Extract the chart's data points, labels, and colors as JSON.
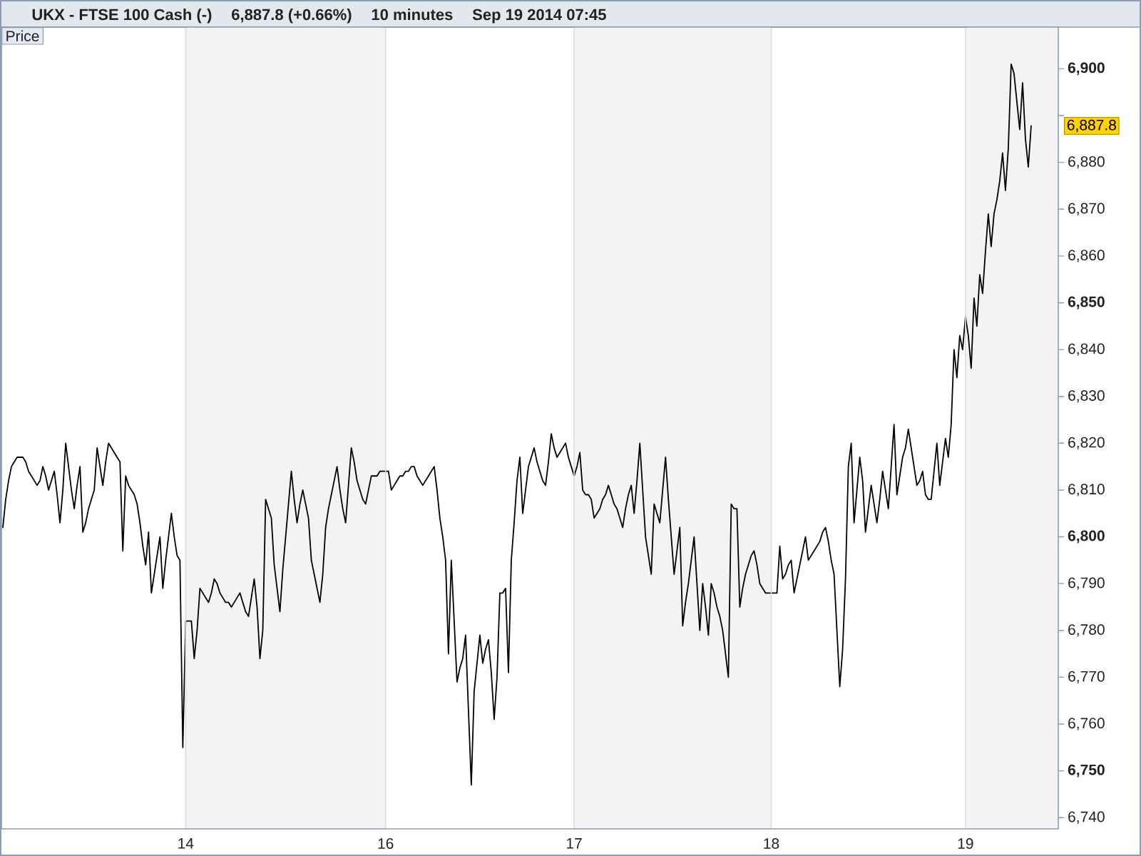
{
  "chart_data": {
    "type": "line",
    "title": "UKX - FTSE 100 Cash (-)",
    "subtitle": "6,887.8 (+0.66%)",
    "annotations": [
      "10 minutes",
      "Sep 19 2014 07:45",
      "Price",
      "6,887.8"
    ],
    "color": "#000000",
    "categories": [
      null,
      null,
      null,
      null,
      null,
      null,
      null,
      null,
      null,
      null,
      null,
      null,
      null,
      null,
      null,
      null,
      null,
      null,
      null,
      null,
      null,
      null,
      null,
      null,
      null,
      null,
      null,
      null,
      null,
      null,
      null,
      null,
      null,
      null,
      null,
      null,
      null,
      null,
      null,
      null,
      null,
      null,
      null,
      null,
      null,
      null,
      null,
      null,
      null,
      null,
      null,
      null,
      null,
      null,
      null,
      null,
      null,
      null,
      null,
      null,
      null,
      null,
      null,
      null,
      "14",
      null,
      null,
      null,
      null,
      null,
      null,
      null,
      null,
      null,
      null,
      null,
      null,
      null,
      null,
      null,
      null,
      null,
      null,
      null,
      null,
      null,
      null,
      null,
      null,
      null,
      null,
      null,
      null,
      null,
      null,
      null,
      null,
      null,
      null,
      null,
      null,
      null,
      null,
      null,
      null,
      null,
      null,
      null,
      null,
      null,
      null,
      null,
      null,
      null,
      null,
      null,
      null,
      null,
      null,
      null,
      null,
      null,
      null,
      null,
      null,
      null,
      null,
      null,
      null,
      null,
      null,
      null,
      null,
      null,
      "16",
      null,
      null,
      null,
      null,
      null,
      null,
      null,
      null,
      null,
      null,
      null,
      null,
      null,
      null,
      null,
      null,
      null,
      null,
      null,
      null,
      null,
      null,
      null,
      null,
      null,
      null,
      null,
      null,
      null,
      null,
      null,
      null,
      null,
      null,
      null,
      null,
      null,
      null,
      null,
      null,
      null,
      null,
      null,
      null,
      null,
      null,
      null,
      null,
      null,
      null,
      null,
      null,
      null,
      null,
      null,
      null,
      null,
      null,
      null,
      null,
      null,
      null,
      null,
      null,
      null,
      "17",
      null,
      null,
      null,
      null,
      null,
      null,
      null,
      null,
      null,
      null,
      null,
      null,
      null,
      null,
      null,
      null,
      null,
      null,
      null,
      null,
      null,
      null,
      null,
      null,
      null,
      null,
      null,
      null,
      null,
      null,
      null,
      null,
      null,
      null,
      null,
      null,
      null,
      null,
      null,
      null,
      null,
      null,
      null,
      null,
      null,
      null,
      null,
      null,
      null,
      null,
      null,
      null,
      null,
      null,
      null,
      null,
      null,
      null,
      null,
      null,
      null,
      null,
      null,
      null,
      null,
      null,
      null,
      null,
      "18",
      null,
      null,
      null,
      null,
      null,
      null,
      null,
      null,
      null,
      null,
      null,
      null,
      null,
      null,
      null,
      null,
      null,
      null,
      null,
      null,
      null,
      null,
      null,
      null,
      null,
      null,
      null,
      null,
      null,
      null,
      null,
      null,
      null,
      null,
      null,
      null,
      null,
      null,
      null,
      null,
      null,
      null,
      null,
      null,
      null,
      null,
      null,
      null,
      null,
      null,
      null,
      null,
      null,
      null,
      null,
      null,
      null,
      null,
      null,
      null,
      null,
      null,
      null,
      null,
      null,
      null,
      null,
      "19",
      null,
      null,
      null,
      null,
      null,
      null,
      null,
      null,
      null,
      null,
      null,
      null,
      null,
      null,
      null,
      null,
      null,
      null,
      null,
      null,
      null,
      null,
      null,
      null,
      null,
      null,
      null,
      null,
      null,
      null,
      null,
      null
    ],
    "values": [
      6802,
      6808,
      6812,
      6815,
      6816,
      6817,
      6817,
      6817,
      6816,
      6814,
      6813,
      6812,
      6811,
      6812,
      6815,
      6813,
      6810,
      6812,
      6814,
      6809,
      6803,
      6810,
      6820,
      6815,
      6810,
      6806,
      6811,
      6815,
      6801,
      6803,
      6806,
      6808,
      6810,
      6819,
      6815,
      6811,
      6816,
      6820,
      6819,
      6818,
      6817,
      6816,
      6797,
      6813,
      6811,
      6810,
      6809,
      6807,
      6803,
      6798,
      6794,
      6801,
      6788,
      6792,
      6796,
      6800,
      6789,
      6795,
      6800,
      6805,
      6800,
      6796,
      6795,
      6755,
      6782,
      6782,
      6782,
      6774,
      6780,
      6789,
      6788,
      6787,
      6786,
      6788,
      6791,
      6790,
      6788,
      6787,
      6786,
      6786,
      6785,
      6786,
      6787,
      6788,
      6786,
      6784,
      6783,
      6787,
      6791,
      6785,
      6774,
      6780,
      6808,
      6806,
      6804,
      6794,
      6789,
      6784,
      6793,
      6800,
      6807,
      6814,
      6808,
      6803,
      6807,
      6810,
      6807,
      6804,
      6795,
      6792,
      6789,
      6786,
      6792,
      6802,
      6806,
      6809,
      6812,
      6815,
      6810,
      6806,
      6803,
      6811,
      6819,
      6816,
      6812,
      6810,
      6808,
      6807,
      6810,
      6813,
      6813,
      6813,
      6814,
      6814,
      6814,
      6814,
      6810,
      6811,
      6812,
      6813,
      6813,
      6814,
      6814,
      6815,
      6815,
      6813,
      6812,
      6811,
      6812,
      6813,
      6814,
      6815,
      6810,
      6804,
      6800,
      6795,
      6775,
      6795,
      6782,
      6769,
      6772,
      6774,
      6779,
      6763,
      6747,
      6767,
      6773,
      6779,
      6773,
      6776,
      6778,
      6771,
      6761,
      6770,
      6788,
      6788,
      6789,
      6771,
      6795,
      6803,
      6812,
      6817,
      6805,
      6810,
      6815,
      6817,
      6819,
      6816,
      6814,
      6812,
      6811,
      6816,
      6822,
      6819,
      6817,
      6818,
      6819,
      6820,
      6817,
      6815,
      6813,
      6815,
      6818,
      6810,
      6809,
      6809,
      6808,
      6804,
      6805,
      6806,
      6808,
      6809,
      6811,
      6809,
      6807,
      6806,
      6804,
      6802,
      6806,
      6809,
      6811,
      6805,
      6812,
      6820,
      6810,
      6800,
      6796,
      6792,
      6807,
      6805,
      6803,
      6810,
      6817,
      6808,
      6800,
      6792,
      6797,
      6802,
      6781,
      6786,
      6790,
      6795,
      6800,
      6790,
      6780,
      6790,
      6785,
      6779,
      6790,
      6788,
      6785,
      6783,
      6780,
      6775,
      6770,
      6807,
      6806,
      6806,
      6785,
      6789,
      6792,
      6794,
      6796,
      6797,
      6794,
      6790,
      6789,
      6788,
      6788,
      6788,
      6788,
      6788,
      6798,
      6791,
      6792,
      6794,
      6795,
      6788,
      6791,
      6794,
      6797,
      6800,
      6795,
      6796,
      6797,
      6798,
      6799,
      6801,
      6802,
      6799,
      6795,
      6792,
      6780,
      6768,
      6776,
      6791,
      6815,
      6820,
      6803,
      6810,
      6817,
      6812,
      6801,
      6806,
      6811,
      6807,
      6803,
      6808,
      6814,
      6810,
      6806,
      6815,
      6824,
      6809,
      6813,
      6817,
      6819,
      6823,
      6819,
      6815,
      6811,
      6812,
      6814,
      6809,
      6808,
      6808,
      6814,
      6820,
      6811,
      6816,
      6821,
      6817,
      6824,
      6840,
      6834,
      6843,
      6840,
      6847,
      6843,
      6836,
      6851,
      6845,
      6856,
      6852,
      6861,
      6869,
      6862,
      6869,
      6872,
      6876,
      6882,
      6874,
      6883,
      6901,
      6899,
      6893,
      6887,
      6897,
      6885,
      6879,
      6887.8,
      null,
      null,
      null,
      null,
      null,
      null,
      null,
      null,
      null
    ],
    "ylim": [
      6737.6,
      6908.9
    ],
    "yticks": [
      {
        "value": 6740,
        "label": "6,740"
      },
      {
        "value": 6750,
        "label": "6,750"
      },
      {
        "value": 6760,
        "label": "6,760"
      },
      {
        "value": 6770,
        "label": "6,770"
      },
      {
        "value": 6780,
        "label": "6,780"
      },
      {
        "value": 6790,
        "label": "6,790"
      },
      {
        "value": 6800,
        "label": "6,800"
      },
      {
        "value": 6810,
        "label": "6,810"
      },
      {
        "value": 6820,
        "label": "6,820"
      },
      {
        "value": 6830,
        "label": "6,830"
      },
      {
        "value": 6840,
        "label": "6,840"
      },
      {
        "value": 6850,
        "label": "6,850"
      },
      {
        "value": 6860,
        "label": "6,860"
      },
      {
        "value": 6870,
        "label": "6,870"
      },
      {
        "value": 6880,
        "label": "6,880"
      },
      {
        "value": 6890,
        "label": null
      },
      {
        "value": 6900,
        "label": "6,900"
      }
    ],
    "grid": "x",
    "bands": [
      {
        "axis": "x",
        "from": "17",
        "to": "18",
        "color": "#f3f3f3"
      }
    ]
  }
}
